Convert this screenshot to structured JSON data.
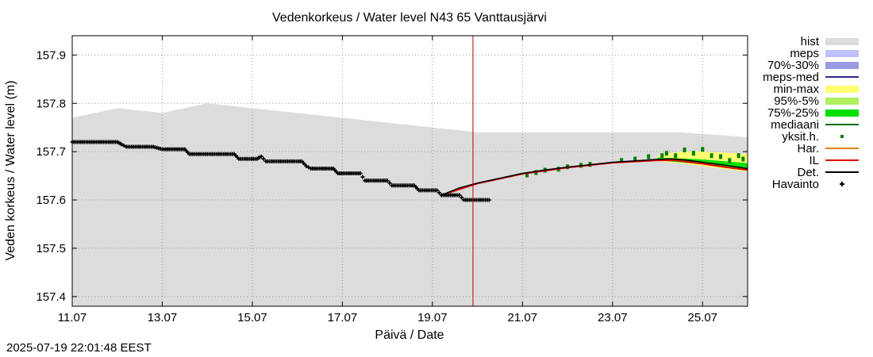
{
  "chart_data": {
    "type": "line",
    "title": "Vedenkorkeus / Water level   N43 65 Vanttausjärvi",
    "xlabel": "Päivä / Date",
    "ylabel": "Veden korkeus / Water level (m)",
    "x_unit": "days since 11.07 00:00",
    "xlim": [
      0,
      15
    ],
    "ylim": [
      157.38,
      157.94
    ],
    "x_ticks": [
      {
        "label": "11.07",
        "value": 0
      },
      {
        "label": "13.07",
        "value": 2
      },
      {
        "label": "15.07",
        "value": 4
      },
      {
        "label": "17.07",
        "value": 6
      },
      {
        "label": "19.07",
        "value": 8
      },
      {
        "label": "21.07",
        "value": 10
      },
      {
        "label": "23.07",
        "value": 12
      },
      {
        "label": "25.07",
        "value": 14
      }
    ],
    "y_ticks": [
      {
        "label": "157.4",
        "value": 157.4
      },
      {
        "label": "157.5",
        "value": 157.5
      },
      {
        "label": "157.6",
        "value": 157.6
      },
      {
        "label": "157.7",
        "value": 157.7
      },
      {
        "label": "157.8",
        "value": 157.8
      },
      {
        "label": "157.9",
        "value": 157.9
      }
    ],
    "grid": true,
    "now_line_x": 8.9,
    "colors": {
      "hist": "#dcdcdc",
      "meps": "#c0c0ff",
      "p70_30": "#9a9ae0",
      "meps_med": "#2c2c8c",
      "minmax": "#ffff70",
      "p95_5": "#b0f060",
      "p75_25": "#00e000",
      "median": "#007000",
      "yksit": "#008000",
      "har": "#e08000",
      "il": "#e00000",
      "det": "#000000",
      "obs": "#000000",
      "now": "#c00000",
      "grid": "#999999"
    },
    "series": {
      "hist_upper": [
        [
          0,
          157.77
        ],
        [
          1,
          157.79
        ],
        [
          2,
          157.78
        ],
        [
          3,
          157.8
        ],
        [
          4,
          157.79
        ],
        [
          6,
          157.77
        ],
        [
          9,
          157.74
        ],
        [
          12,
          157.74
        ],
        [
          13.5,
          157.74
        ],
        [
          15,
          157.73
        ]
      ],
      "hist_lower": 157.38,
      "observations": [
        [
          0,
          157.72
        ],
        [
          0.5,
          157.72
        ],
        [
          1,
          157.72
        ],
        [
          1.1,
          157.715
        ],
        [
          1.2,
          157.71
        ],
        [
          1.8,
          157.71
        ],
        [
          2,
          157.705
        ],
        [
          2.5,
          157.705
        ],
        [
          2.6,
          157.695
        ],
        [
          3.6,
          157.695
        ],
        [
          3.7,
          157.685
        ],
        [
          4.1,
          157.685
        ],
        [
          4.2,
          157.69
        ],
        [
          4.3,
          157.68
        ],
        [
          5.1,
          157.68
        ],
        [
          5.2,
          157.67
        ],
        [
          5.3,
          157.665
        ],
        [
          5.8,
          157.665
        ],
        [
          5.9,
          157.655
        ],
        [
          6.4,
          157.655
        ],
        [
          6.5,
          157.64
        ],
        [
          7,
          157.64
        ],
        [
          7.1,
          157.63
        ],
        [
          7.6,
          157.63
        ],
        [
          7.7,
          157.62
        ],
        [
          8.1,
          157.62
        ],
        [
          8.2,
          157.61
        ],
        [
          8.6,
          157.61
        ],
        [
          8.7,
          157.6
        ],
        [
          9.3,
          157.6
        ]
      ],
      "deterministic": [
        [
          8.2,
          157.61
        ],
        [
          8.6,
          157.625
        ],
        [
          9,
          157.635
        ],
        [
          9.5,
          157.645
        ],
        [
          10,
          157.655
        ],
        [
          10.5,
          157.662
        ],
        [
          11,
          157.668
        ],
        [
          11.5,
          157.673
        ],
        [
          12,
          157.678
        ],
        [
          12.5,
          157.681
        ],
        [
          13,
          157.684
        ],
        [
          13.3,
          157.685
        ],
        [
          13.6,
          157.683
        ],
        [
          14,
          157.678
        ],
        [
          14.5,
          157.672
        ],
        [
          15,
          157.665
        ]
      ],
      "il": [
        [
          8.2,
          157.61
        ],
        [
          9,
          157.634
        ],
        [
          10,
          157.654
        ],
        [
          11,
          157.667
        ],
        [
          12,
          157.677
        ],
        [
          13,
          157.682
        ],
        [
          13.4,
          157.682
        ],
        [
          14,
          157.675
        ],
        [
          14.5,
          157.668
        ],
        [
          15,
          157.662
        ]
      ],
      "minmax_upper": [
        [
          13,
          157.692
        ],
        [
          13.5,
          157.7
        ],
        [
          14,
          157.7
        ],
        [
          14.5,
          157.698
        ],
        [
          15,
          157.695
        ]
      ],
      "minmax_lower": [
        [
          13,
          157.68
        ],
        [
          13.5,
          157.676
        ],
        [
          14,
          157.67
        ],
        [
          14.5,
          157.664
        ],
        [
          15,
          157.658
        ]
      ],
      "p75_25_upper": [
        [
          13,
          157.688
        ],
        [
          14,
          157.684
        ],
        [
          15,
          157.676
        ]
      ],
      "p75_25_lower": [
        [
          13,
          157.682
        ],
        [
          14,
          157.674
        ],
        [
          15,
          157.664
        ]
      ],
      "yksit": [
        [
          13.1,
          157.69
        ],
        [
          13.2,
          157.695
        ],
        [
          13.4,
          157.69
        ],
        [
          13.6,
          157.702
        ],
        [
          13.8,
          157.695
        ],
        [
          14,
          157.703
        ],
        [
          14.2,
          157.69
        ],
        [
          14.4,
          157.688
        ],
        [
          14.6,
          157.68
        ],
        [
          14.8,
          157.69
        ],
        [
          14.9,
          157.683
        ],
        [
          12.8,
          157.688
        ],
        [
          12.5,
          157.683
        ],
        [
          12.2,
          157.68
        ],
        [
          11.5,
          157.672
        ],
        [
          11.3,
          157.67
        ],
        [
          11,
          157.667
        ],
        [
          10.8,
          157.662
        ],
        [
          10.5,
          157.66
        ],
        [
          10.3,
          157.655
        ],
        [
          10.1,
          157.65
        ]
      ]
    },
    "legend": [
      {
        "key": "hist",
        "label": "hist"
      },
      {
        "key": "meps",
        "label": "meps"
      },
      {
        "key": "p70_30",
        "label": "70%-30%"
      },
      {
        "key": "meps_med",
        "label": "meps-med"
      },
      {
        "key": "minmax",
        "label": "min-max"
      },
      {
        "key": "p95_5",
        "label": "95%-5%"
      },
      {
        "key": "p75_25",
        "label": "75%-25%"
      },
      {
        "key": "median",
        "label": "mediaani"
      },
      {
        "key": "yksit",
        "label": "yksit.h."
      },
      {
        "key": "har",
        "label": "Har."
      },
      {
        "key": "il",
        "label": "IL"
      },
      {
        "key": "det",
        "label": "Det."
      },
      {
        "key": "obs",
        "label": "Havainto"
      }
    ]
  },
  "timestamp": "2025-07-19 22:01:48 EEST"
}
